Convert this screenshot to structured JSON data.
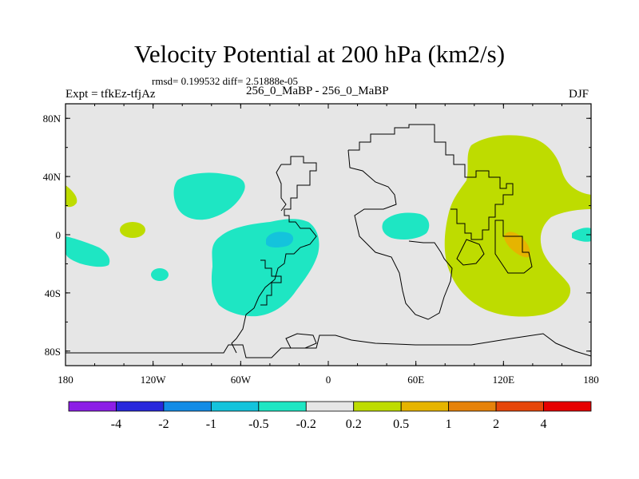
{
  "header": {
    "title": "Velocity Potential at 200 hPa (km2/s)",
    "stats": "rmsd= 0.199532 diff= 2.51888e-05",
    "expt": "Expt = tfkEz-tfjAz",
    "center_label": "256_0_MaBP - 256_0_MaBP",
    "season": "DJF"
  },
  "chart_data": {
    "type": "heatmap",
    "title": "Velocity Potential at 200 hPa (km2/s)",
    "xlabel": "",
    "ylabel": "",
    "xlim": [
      -180,
      180
    ],
    "ylim": [
      -90,
      90
    ],
    "x_ticks": [
      {
        "value": -180,
        "label": "180"
      },
      {
        "value": -120,
        "label": "120W"
      },
      {
        "value": -60,
        "label": "60W"
      },
      {
        "value": 0,
        "label": "0"
      },
      {
        "value": 60,
        "label": "60E"
      },
      {
        "value": 120,
        "label": "120E"
      },
      {
        "value": 180,
        "label": "180"
      }
    ],
    "y_ticks": [
      {
        "value": 80,
        "label": "80N"
      },
      {
        "value": 40,
        "label": "40N"
      },
      {
        "value": 0,
        "label": "0"
      },
      {
        "value": -40,
        "label": "40S"
      },
      {
        "value": -80,
        "label": "80S"
      }
    ],
    "colorbar": {
      "levels": [
        "-4",
        "-2",
        "-1",
        "-0.5",
        "-0.2",
        "0.2",
        "0.5",
        "1",
        "2",
        "4"
      ],
      "colors": [
        "#8c1ee6",
        "#2828dc",
        "#148ce6",
        "#14c3dc",
        "#1ee6c3",
        "#e6e6e6",
        "#bedc00",
        "#e6b400",
        "#e6820a",
        "#e6460a",
        "#e60000"
      ]
    },
    "background_color": "#e6e6e6",
    "regions": [
      {
        "level_bin": "-0.5 to -0.2",
        "color": "#1ee6c3",
        "approx_lon": [
          -38,
          -38
        ],
        "approx_lat": [
          -2,
          -2
        ],
        "note": "tropical Atlantic / S. America broad region",
        "center": [
          -40,
          -15
        ]
      },
      {
        "level_bin": "-1 to -0.5",
        "color": "#14c3dc",
        "center": [
          -36,
          -2
        ]
      },
      {
        "level_bin": "-0.5 to -0.2",
        "color": "#1ee6c3",
        "center": [
          -97,
          38
        ]
      },
      {
        "level_bin": "-0.5 to -0.2",
        "color": "#1ee6c3",
        "center": [
          -165,
          -10
        ]
      },
      {
        "level_bin": "-0.5 to -0.2",
        "color": "#1ee6c3",
        "center": [
          -110,
          -27
        ]
      },
      {
        "level_bin": "-0.5 to -0.2",
        "color": "#1ee6c3",
        "center": [
          52,
          7
        ]
      },
      {
        "level_bin": "-0.5 to -0.2",
        "color": "#1ee6c3",
        "center": [
          175,
          0
        ]
      },
      {
        "level_bin": "0.2 to 0.5",
        "color": "#bedc00",
        "center": [
          -137,
          5
        ]
      },
      {
        "level_bin": "0.2 to 0.5",
        "color": "#bedc00",
        "center": [
          -178,
          28
        ]
      },
      {
        "level_bin": "0.2 to 0.5",
        "color": "#bedc00",
        "center": [
          125,
          10
        ]
      },
      {
        "level_bin": "0.5 to 1",
        "color": "#e6b400",
        "center": [
          128,
          -5
        ]
      }
    ]
  }
}
